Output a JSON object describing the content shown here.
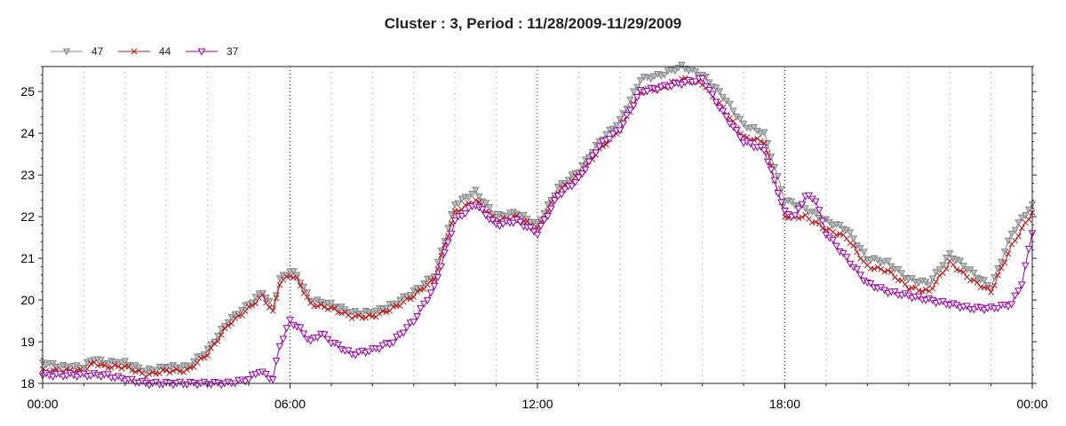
{
  "chart_data": {
    "type": "line",
    "title": "Cluster : 3, Period : 11/28/2009-11/29/2009",
    "xlabel": "",
    "ylabel": "",
    "x_range": [
      "00:00",
      "24:00"
    ],
    "x_ticks": [
      "00:00",
      "06:00",
      "12:00",
      "18:00",
      "00:00"
    ],
    "ylim": [
      18,
      25.6
    ],
    "y_ticks": [
      18,
      19,
      20,
      21,
      22,
      23,
      24,
      25
    ],
    "grid": "vertical-dotted",
    "legend_position": "top-left",
    "series": [
      {
        "name": "47",
        "color": "#8c8c8c",
        "marker": "triangle-down-filled",
        "points": [
          [
            "00:00",
            18.5
          ],
          [
            "00:30",
            18.4
          ],
          [
            "01:00",
            18.4
          ],
          [
            "01:15",
            18.6
          ],
          [
            "01:30",
            18.5
          ],
          [
            "02:00",
            18.5
          ],
          [
            "02:30",
            18.3
          ],
          [
            "03:00",
            18.4
          ],
          [
            "03:30",
            18.4
          ],
          [
            "04:00",
            18.8
          ],
          [
            "04:30",
            19.5
          ],
          [
            "05:00",
            19.9
          ],
          [
            "05:20",
            20.2
          ],
          [
            "05:35",
            19.8
          ],
          [
            "05:45",
            20.5
          ],
          [
            "06:00",
            20.7
          ],
          [
            "06:10",
            20.6
          ],
          [
            "06:30",
            20.0
          ],
          [
            "07:00",
            19.9
          ],
          [
            "07:30",
            19.7
          ],
          [
            "08:00",
            19.7
          ],
          [
            "08:30",
            19.9
          ],
          [
            "09:00",
            20.2
          ],
          [
            "09:30",
            20.6
          ],
          [
            "10:00",
            22.3
          ],
          [
            "10:30",
            22.6
          ],
          [
            "11:00",
            22.0
          ],
          [
            "11:30",
            22.1
          ],
          [
            "12:00",
            21.8
          ],
          [
            "12:30",
            22.7
          ],
          [
            "13:00",
            23.1
          ],
          [
            "13:30",
            23.8
          ],
          [
            "14:00",
            24.3
          ],
          [
            "14:30",
            25.3
          ],
          [
            "15:00",
            25.4
          ],
          [
            "15:30",
            25.6
          ],
          [
            "16:00",
            25.4
          ],
          [
            "16:30",
            24.9
          ],
          [
            "17:00",
            24.2
          ],
          [
            "17:30",
            24.0
          ],
          [
            "18:00",
            22.4
          ],
          [
            "18:30",
            22.2
          ],
          [
            "19:00",
            21.9
          ],
          [
            "19:30",
            21.7
          ],
          [
            "20:00",
            21.0
          ],
          [
            "20:30",
            20.9
          ],
          [
            "21:00",
            20.5
          ],
          [
            "21:30",
            20.4
          ],
          [
            "22:00",
            21.1
          ],
          [
            "22:30",
            20.7
          ],
          [
            "23:00",
            20.3
          ],
          [
            "23:30",
            21.6
          ],
          [
            "24:00",
            22.3
          ]
        ]
      },
      {
        "name": "44",
        "color": "#b22222",
        "marker": "x",
        "points": [
          [
            "00:00",
            18.3
          ],
          [
            "00:30",
            18.3
          ],
          [
            "01:00",
            18.3
          ],
          [
            "01:15",
            18.5
          ],
          [
            "01:30",
            18.4
          ],
          [
            "02:00",
            18.4
          ],
          [
            "02:30",
            18.2
          ],
          [
            "03:00",
            18.3
          ],
          [
            "03:30",
            18.3
          ],
          [
            "04:00",
            18.7
          ],
          [
            "04:30",
            19.4
          ],
          [
            "05:00",
            19.8
          ],
          [
            "05:20",
            20.1
          ],
          [
            "05:35",
            19.7
          ],
          [
            "05:45",
            20.4
          ],
          [
            "06:00",
            20.6
          ],
          [
            "06:10",
            20.5
          ],
          [
            "06:30",
            19.9
          ],
          [
            "07:00",
            19.8
          ],
          [
            "07:30",
            19.6
          ],
          [
            "08:00",
            19.6
          ],
          [
            "08:30",
            19.8
          ],
          [
            "09:00",
            20.1
          ],
          [
            "09:30",
            20.5
          ],
          [
            "10:00",
            22.1
          ],
          [
            "10:30",
            22.4
          ],
          [
            "11:00",
            21.9
          ],
          [
            "11:30",
            22.0
          ],
          [
            "12:00",
            21.7
          ],
          [
            "12:30",
            22.6
          ],
          [
            "13:00",
            23.0
          ],
          [
            "13:30",
            23.6
          ],
          [
            "14:00",
            24.1
          ],
          [
            "14:30",
            25.0
          ],
          [
            "15:00",
            25.1
          ],
          [
            "15:30",
            25.3
          ],
          [
            "16:00",
            25.2
          ],
          [
            "16:30",
            24.6
          ],
          [
            "17:00",
            23.9
          ],
          [
            "17:30",
            23.8
          ],
          [
            "18:00",
            22.0
          ],
          [
            "18:30",
            22.0
          ],
          [
            "19:00",
            21.7
          ],
          [
            "19:30",
            21.5
          ],
          [
            "20:00",
            20.8
          ],
          [
            "20:30",
            20.7
          ],
          [
            "21:00",
            20.3
          ],
          [
            "21:30",
            20.2
          ],
          [
            "22:00",
            20.9
          ],
          [
            "22:30",
            20.5
          ],
          [
            "23:00",
            20.2
          ],
          [
            "23:30",
            21.3
          ],
          [
            "24:00",
            22.1
          ]
        ]
      },
      {
        "name": "37",
        "color": "#9400a0",
        "marker": "triangle-down-open",
        "points": [
          [
            "00:00",
            18.2
          ],
          [
            "00:30",
            18.2
          ],
          [
            "01:00",
            18.2
          ],
          [
            "01:30",
            18.2
          ],
          [
            "02:00",
            18.1
          ],
          [
            "02:30",
            18.0
          ],
          [
            "03:00",
            18.0
          ],
          [
            "03:30",
            18.0
          ],
          [
            "04:00",
            18.0
          ],
          [
            "04:30",
            18.0
          ],
          [
            "05:00",
            18.1
          ],
          [
            "05:15",
            18.3
          ],
          [
            "05:35",
            18.1
          ],
          [
            "05:45",
            18.9
          ],
          [
            "06:00",
            19.5
          ],
          [
            "06:15",
            19.3
          ],
          [
            "06:30",
            19.0
          ],
          [
            "06:45",
            19.2
          ],
          [
            "07:00",
            19.0
          ],
          [
            "07:30",
            18.7
          ],
          [
            "08:00",
            18.8
          ],
          [
            "08:30",
            19.0
          ],
          [
            "09:00",
            19.5
          ],
          [
            "09:30",
            20.3
          ],
          [
            "10:00",
            21.9
          ],
          [
            "10:30",
            22.3
          ],
          [
            "11:00",
            21.8
          ],
          [
            "11:30",
            21.9
          ],
          [
            "12:00",
            21.6
          ],
          [
            "12:30",
            22.5
          ],
          [
            "13:00",
            22.9
          ],
          [
            "13:30",
            23.7
          ],
          [
            "14:00",
            24.1
          ],
          [
            "14:30",
            25.0
          ],
          [
            "15:00",
            25.1
          ],
          [
            "15:30",
            25.2
          ],
          [
            "16:00",
            25.3
          ],
          [
            "16:30",
            24.5
          ],
          [
            "17:00",
            23.8
          ],
          [
            "17:30",
            23.6
          ],
          [
            "18:00",
            22.1
          ],
          [
            "18:15",
            22.0
          ],
          [
            "18:30",
            22.5
          ],
          [
            "18:45",
            22.4
          ],
          [
            "19:00",
            21.6
          ],
          [
            "19:30",
            21.0
          ],
          [
            "20:00",
            20.4
          ],
          [
            "20:30",
            20.2
          ],
          [
            "21:00",
            20.1
          ],
          [
            "21:30",
            20.0
          ],
          [
            "22:00",
            19.9
          ],
          [
            "22:30",
            19.8
          ],
          [
            "23:00",
            19.8
          ],
          [
            "23:30",
            19.9
          ],
          [
            "23:45",
            20.4
          ],
          [
            "24:00",
            21.6
          ]
        ]
      }
    ]
  }
}
